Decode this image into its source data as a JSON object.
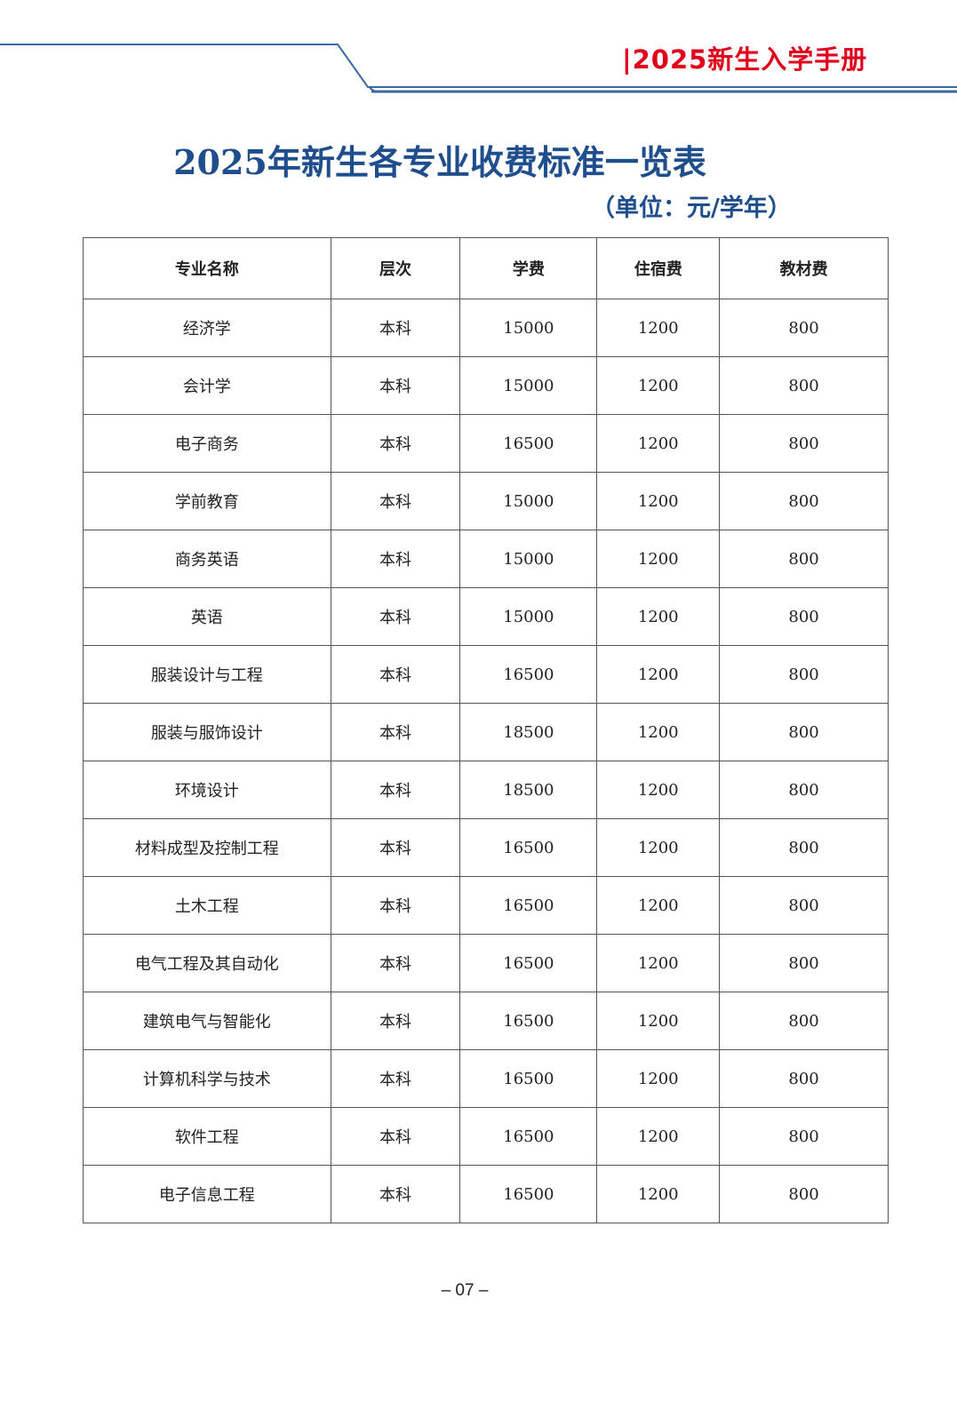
{
  "header": {
    "brand": "|2025新生入学手册",
    "line_color": "#3a6aa3",
    "brand_color": "#e0001b"
  },
  "title": "2025年新生各专业收费标准一览表",
  "unit": "（单位：元/学年）",
  "table": {
    "columns": [
      "专业名称",
      "层次",
      "学费",
      "住宿费",
      "教材费"
    ],
    "rows": [
      [
        "经济学",
        "本科",
        "15000",
        "1200",
        "800"
      ],
      [
        "会计学",
        "本科",
        "15000",
        "1200",
        "800"
      ],
      [
        "电子商务",
        "本科",
        "16500",
        "1200",
        "800"
      ],
      [
        "学前教育",
        "本科",
        "15000",
        "1200",
        "800"
      ],
      [
        "商务英语",
        "本科",
        "15000",
        "1200",
        "800"
      ],
      [
        "英语",
        "本科",
        "15000",
        "1200",
        "800"
      ],
      [
        "服装设计与工程",
        "本科",
        "16500",
        "1200",
        "800"
      ],
      [
        "服装与服饰设计",
        "本科",
        "18500",
        "1200",
        "800"
      ],
      [
        "环境设计",
        "本科",
        "18500",
        "1200",
        "800"
      ],
      [
        "材料成型及控制工程",
        "本科",
        "16500",
        "1200",
        "800"
      ],
      [
        "土木工程",
        "本科",
        "16500",
        "1200",
        "800"
      ],
      [
        "电气工程及其自动化",
        "本科",
        "16500",
        "1200",
        "800"
      ],
      [
        "建筑电气与智能化",
        "本科",
        "16500",
        "1200",
        "800"
      ],
      [
        "计算机科学与技术",
        "本科",
        "16500",
        "1200",
        "800"
      ],
      [
        "软件工程",
        "本科",
        "16500",
        "1200",
        "800"
      ],
      [
        "电子信息工程",
        "本科",
        "16500",
        "1200",
        "800"
      ]
    ]
  },
  "page_number": "– 07 –"
}
